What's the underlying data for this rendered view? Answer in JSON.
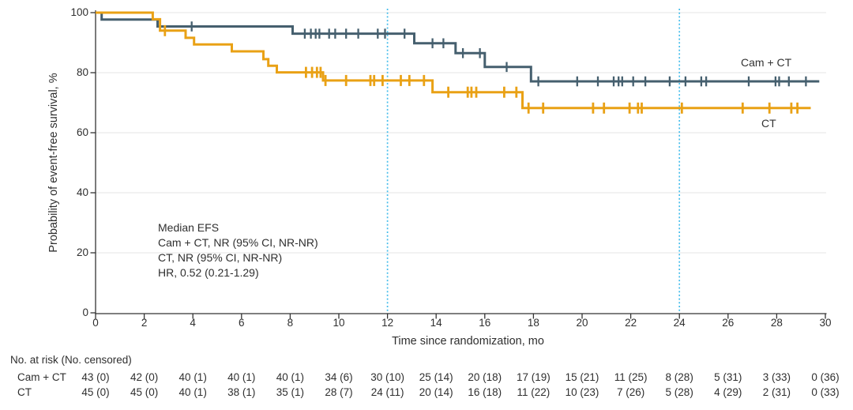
{
  "figure": {
    "background": "#ffffff",
    "text_color": "#2f2f2f",
    "axis_color": "#333333",
    "grid_color": "#eaeaea",
    "annotation": {
      "lines": [
        "Median EFS",
        "Cam + CT, NR (95% CI, NR-NR)",
        "CT, NR (95% CI, NR-NR)",
        "HR, 0.52 (0.21-1.29)"
      ]
    }
  },
  "chart_data": {
    "type": "line",
    "subtype": "kaplan-meier-step",
    "title": "",
    "xlabel": "Time since randomization, mo",
    "ylabel": "Probability of event-free survival, %",
    "xlim": [
      0,
      30
    ],
    "ylim": [
      0,
      100
    ],
    "x_ticks": [
      0,
      2,
      4,
      6,
      8,
      10,
      12,
      14,
      16,
      18,
      20,
      22,
      24,
      26,
      28,
      30
    ],
    "y_ticks": [
      0,
      20,
      40,
      60,
      80,
      100
    ],
    "grid": "horizontal",
    "reference_lines_x": [
      12,
      24
    ],
    "reference_line_color": "#45bdec",
    "series": [
      {
        "name": "Cam + CT",
        "color": "#455f6e",
        "steps": [
          [
            0,
            100
          ],
          [
            0.25,
            97.7
          ],
          [
            2.55,
            95.4
          ],
          [
            8.1,
            93.0
          ],
          [
            13.1,
            89.8
          ],
          [
            14.8,
            86.5
          ],
          [
            16.0,
            81.9
          ],
          [
            17.9,
            77.1
          ]
        ],
        "end_x": 29.75,
        "censor_times": [
          3.95,
          8.6,
          8.85,
          9.05,
          9.2,
          9.6,
          9.85,
          10.3,
          10.8,
          11.6,
          11.9,
          12.7,
          13.85,
          14.3,
          15.1,
          15.8,
          16.9,
          18.2,
          19.8,
          20.65,
          21.3,
          21.5,
          21.65,
          22.1,
          22.6,
          23.6,
          24.25,
          24.9,
          25.1,
          26.85,
          27.95,
          28.1,
          28.5,
          29.2
        ]
      },
      {
        "name": "CT",
        "color": "#e9a115",
        "steps": [
          [
            0,
            100
          ],
          [
            2.35,
            97.8
          ],
          [
            2.65,
            94.0
          ],
          [
            3.7,
            91.6
          ],
          [
            4.05,
            89.4
          ],
          [
            5.6,
            87.1
          ],
          [
            6.9,
            84.5
          ],
          [
            7.1,
            82.3
          ],
          [
            7.45,
            80.1
          ],
          [
            9.35,
            77.4
          ],
          [
            13.85,
            73.5
          ],
          [
            17.55,
            68.2
          ]
        ],
        "end_x": 29.4,
        "censor_times": [
          2.85,
          8.65,
          8.9,
          9.1,
          9.25,
          9.45,
          10.3,
          11.3,
          11.45,
          11.8,
          12.55,
          12.9,
          13.5,
          14.5,
          15.3,
          15.45,
          15.65,
          16.8,
          17.3,
          17.8,
          18.4,
          20.45,
          20.9,
          21.95,
          22.3,
          22.45,
          24.1,
          26.6,
          27.7,
          28.6,
          28.85
        ]
      }
    ]
  },
  "risk_table": {
    "header": "No. at risk (No. censored)",
    "time_points": [
      0,
      2,
      4,
      6,
      8,
      10,
      12,
      14,
      16,
      18,
      20,
      22,
      24,
      26,
      28,
      30
    ],
    "rows": [
      {
        "label": "Cam + CT",
        "values": [
          "43 (0)",
          "42 (0)",
          "40 (1)",
          "40 (1)",
          "40 (1)",
          "34 (6)",
          "30 (10)",
          "25 (14)",
          "20 (18)",
          "17 (19)",
          "15 (21)",
          "11 (25)",
          "8 (28)",
          "5 (31)",
          "3 (33)",
          "0 (36)"
        ]
      },
      {
        "label": "CT",
        "values": [
          "45 (0)",
          "45 (0)",
          "40 (1)",
          "38 (1)",
          "35 (1)",
          "28 (7)",
          "24 (11)",
          "20 (14)",
          "16 (18)",
          "11 (22)",
          "10 (23)",
          "7 (26)",
          "5 (28)",
          "4 (29)",
          "2 (31)",
          "0 (33)"
        ]
      }
    ]
  }
}
